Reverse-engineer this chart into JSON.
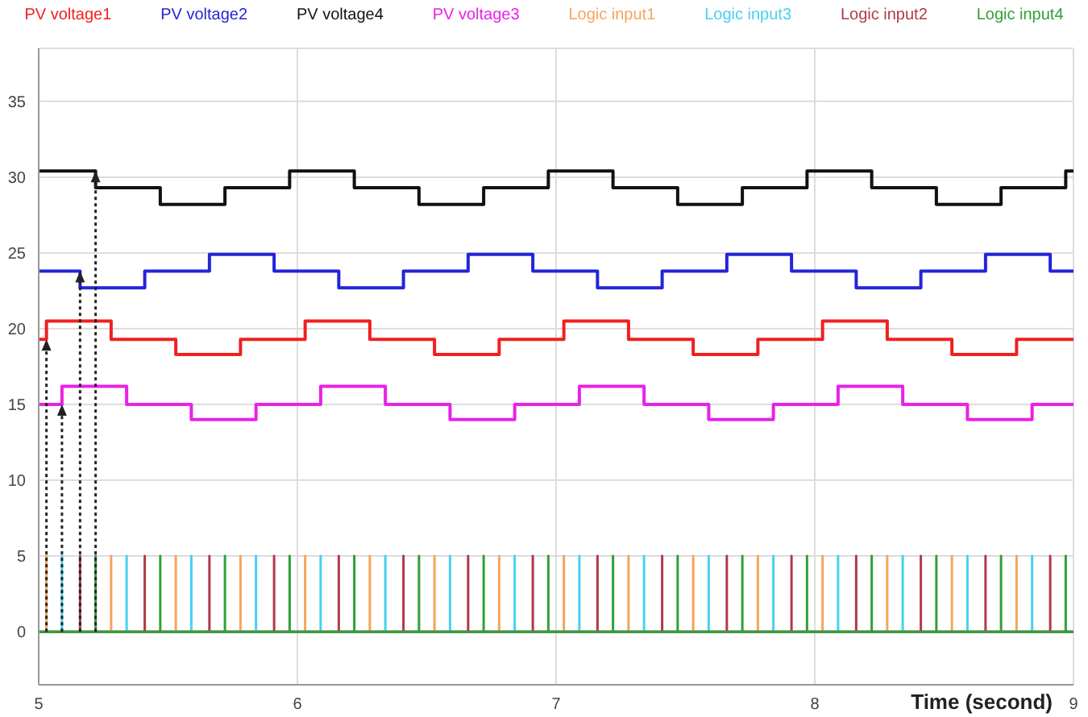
{
  "chart_data": {
    "type": "step",
    "xlabel": "Time (second)",
    "xlim": [
      5,
      9
    ],
    "xticks": [
      5,
      6,
      7,
      8,
      9
    ],
    "ylim": [
      -3.5,
      38.5
    ],
    "yticks": [
      0,
      5,
      10,
      15,
      20,
      25,
      30,
      35
    ],
    "grid": true,
    "legend": "top",
    "line_style": "solid",
    "series": [
      {
        "name": "PV voltage1",
        "color": "#f02020",
        "x": [
          5,
          5.03,
          5.28,
          5.53,
          5.78,
          6.03,
          6.28,
          6.53,
          6.78,
          7.03,
          7.28,
          7.53,
          7.78,
          8.03,
          8.28,
          8.53,
          8.78,
          9
        ],
        "values": [
          19.3,
          20.5,
          19.3,
          18.3,
          19.3,
          20.5,
          19.3,
          18.3,
          19.3,
          20.5,
          19.3,
          18.3,
          19.3,
          20.5,
          19.3,
          18.3,
          19.3,
          19.3
        ]
      },
      {
        "name": "PV voltage2",
        "color": "#2424d8",
        "x": [
          5,
          5.16,
          5.41,
          5.66,
          5.91,
          6.16,
          6.41,
          6.66,
          6.91,
          7.16,
          7.41,
          7.66,
          7.91,
          8.16,
          8.41,
          8.66,
          8.91,
          9
        ],
        "values": [
          23.8,
          22.7,
          23.8,
          24.9,
          23.8,
          22.7,
          23.8,
          24.9,
          23.8,
          22.7,
          23.8,
          24.9,
          23.8,
          22.7,
          23.8,
          24.9,
          23.8,
          23.8
        ]
      },
      {
        "name": "PV voltage4",
        "color": "#111111",
        "x": [
          5,
          5.22,
          5.47,
          5.72,
          5.97,
          6.22,
          6.47,
          6.72,
          6.97,
          7.22,
          7.47,
          7.72,
          7.97,
          8.22,
          8.47,
          8.72,
          8.97,
          9
        ],
        "values": [
          30.4,
          29.3,
          28.2,
          29.3,
          30.4,
          29.3,
          28.2,
          29.3,
          30.4,
          29.3,
          28.2,
          29.3,
          30.4,
          29.3,
          28.2,
          29.3,
          30.4,
          30.4
        ]
      },
      {
        "name": "PV voltage3",
        "color": "#e822e8",
        "x": [
          5,
          5.09,
          5.34,
          5.59,
          5.84,
          6.09,
          6.34,
          6.59,
          6.84,
          7.09,
          7.34,
          7.59,
          7.84,
          8.09,
          8.34,
          8.59,
          8.84,
          9
        ],
        "values": [
          15,
          16.2,
          15,
          14,
          15,
          16.2,
          15,
          14,
          15,
          16.2,
          15,
          14,
          15,
          16.2,
          15,
          14,
          15,
          15
        ]
      },
      {
        "name": "Logic input1",
        "color": "#f5a55a",
        "type": "line",
        "x": [
          5,
          5.03,
          5.03,
          5.03,
          5.28,
          5.28,
          5.28,
          5.53,
          5.53,
          5.53,
          5.78,
          5.78,
          5.78,
          6.03,
          6.03,
          6.03,
          6.28,
          6.28,
          6.28,
          6.53,
          6.53,
          6.53,
          6.78,
          6.78,
          6.78,
          7.03,
          7.03,
          7.03,
          7.28,
          7.28,
          7.28,
          7.53,
          7.53,
          7.53,
          7.78,
          7.78,
          7.78,
          8.03,
          8.03,
          8.03,
          8.28,
          8.28,
          8.28,
          8.53,
          8.53,
          8.53,
          8.78,
          8.78,
          8.78,
          9
        ],
        "values": [
          0,
          0,
          5,
          0,
          0,
          5,
          0,
          0,
          5,
          0,
          0,
          5,
          0,
          0,
          5,
          0,
          0,
          5,
          0,
          0,
          5,
          0,
          0,
          5,
          0,
          0,
          5,
          0,
          0,
          5,
          0,
          0,
          5,
          0,
          0,
          5,
          0,
          0,
          5,
          0,
          0,
          5,
          0,
          0,
          5,
          0,
          0,
          5,
          0,
          0
        ]
      },
      {
        "name": "Logic input3",
        "color": "#48d0f0",
        "type": "line",
        "x": [
          5,
          5.09,
          5.09,
          5.09,
          5.34,
          5.34,
          5.34,
          5.59,
          5.59,
          5.59,
          5.84,
          5.84,
          5.84,
          6.09,
          6.09,
          6.09,
          6.34,
          6.34,
          6.34,
          6.59,
          6.59,
          6.59,
          6.84,
          6.84,
          6.84,
          7.09,
          7.09,
          7.09,
          7.34,
          7.34,
          7.34,
          7.59,
          7.59,
          7.59,
          7.84,
          7.84,
          7.84,
          8.09,
          8.09,
          8.09,
          8.34,
          8.34,
          8.34,
          8.59,
          8.59,
          8.59,
          8.84,
          8.84,
          8.84,
          9
        ],
        "values": [
          0,
          0,
          5,
          0,
          0,
          5,
          0,
          0,
          5,
          0,
          0,
          5,
          0,
          0,
          5,
          0,
          0,
          5,
          0,
          0,
          5,
          0,
          0,
          5,
          0,
          0,
          5,
          0,
          0,
          5,
          0,
          0,
          5,
          0,
          0,
          5,
          0,
          0,
          5,
          0,
          0,
          5,
          0,
          0,
          5,
          0,
          0,
          5,
          0,
          0
        ]
      },
      {
        "name": "Logic input2",
        "color": "#b03a48",
        "type": "line",
        "x": [
          5,
          5.16,
          5.16,
          5.16,
          5.41,
          5.41,
          5.41,
          5.66,
          5.66,
          5.66,
          5.91,
          5.91,
          5.91,
          6.16,
          6.16,
          6.16,
          6.41,
          6.41,
          6.41,
          6.66,
          6.66,
          6.66,
          6.91,
          6.91,
          6.91,
          7.16,
          7.16,
          7.16,
          7.41,
          7.41,
          7.41,
          7.66,
          7.66,
          7.66,
          7.91,
          7.91,
          7.91,
          8.16,
          8.16,
          8.16,
          8.41,
          8.41,
          8.41,
          8.66,
          8.66,
          8.66,
          8.91,
          8.91,
          8.91,
          9
        ],
        "values": [
          0,
          0,
          5,
          0,
          0,
          5,
          0,
          0,
          5,
          0,
          0,
          5,
          0,
          0,
          5,
          0,
          0,
          5,
          0,
          0,
          5,
          0,
          0,
          5,
          0,
          0,
          5,
          0,
          0,
          5,
          0,
          0,
          5,
          0,
          0,
          5,
          0,
          0,
          5,
          0,
          0,
          5,
          0,
          0,
          5,
          0,
          0,
          5,
          0,
          0
        ]
      },
      {
        "name": "Logic input4",
        "color": "#30a038",
        "type": "line",
        "x": [
          5,
          5.22,
          5.22,
          5.22,
          5.47,
          5.47,
          5.47,
          5.72,
          5.72,
          5.72,
          5.97,
          5.97,
          5.97,
          6.22,
          6.22,
          6.22,
          6.47,
          6.47,
          6.47,
          6.72,
          6.72,
          6.72,
          6.97,
          6.97,
          6.97,
          7.22,
          7.22,
          7.22,
          7.47,
          7.47,
          7.47,
          7.72,
          7.72,
          7.72,
          7.97,
          7.97,
          7.97,
          8.22,
          8.22,
          8.22,
          8.47,
          8.47,
          8.47,
          8.72,
          8.72,
          8.72,
          8.97,
          8.97,
          8.97,
          9
        ],
        "values": [
          0,
          0,
          5,
          0,
          0,
          5,
          0,
          0,
          5,
          0,
          0,
          5,
          0,
          0,
          5,
          0,
          0,
          5,
          0,
          0,
          5,
          0,
          0,
          5,
          0,
          0,
          5,
          0,
          0,
          5,
          0,
          0,
          5,
          0,
          0,
          5,
          0,
          0,
          5,
          0,
          0,
          5,
          0,
          0,
          5,
          0,
          0,
          5,
          0,
          0
        ]
      }
    ]
  }
}
